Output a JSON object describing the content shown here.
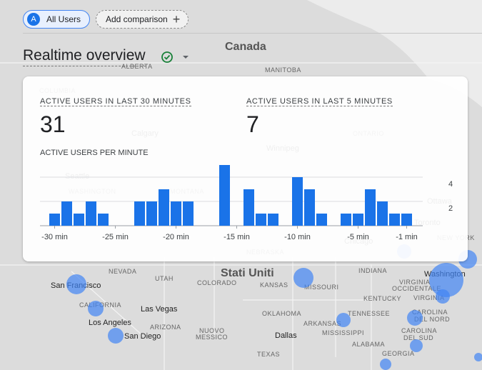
{
  "toolbar": {
    "segment_icon": "A",
    "segment": "All Users",
    "add_comparison": "Add comparison"
  },
  "header": {
    "title": "Realtime overview"
  },
  "card": {
    "metrics": [
      {
        "label": "ACTIVE USERS IN LAST 30 MINUTES",
        "value": 31
      },
      {
        "label": "ACTIVE USERS IN LAST 5 MINUTES",
        "value": 7
      }
    ]
  },
  "chart_data": {
    "type": "bar",
    "title": "ACTIVE USERS PER MINUTE",
    "color": "#1a73e8",
    "categories": [
      "-30 min",
      null,
      null,
      null,
      null,
      "-25 min",
      null,
      null,
      null,
      null,
      "-20 min",
      null,
      null,
      null,
      null,
      "-15 min",
      null,
      null,
      null,
      null,
      "-10 min",
      null,
      null,
      null,
      null,
      "-5 min",
      null,
      null,
      null,
      "-1 min"
    ],
    "values": [
      1,
      2,
      1,
      2,
      1,
      0,
      0,
      2,
      2,
      3,
      2,
      2,
      0,
      0,
      5,
      0,
      3,
      1,
      1,
      0,
      4,
      3,
      1,
      0,
      1,
      1,
      3,
      2,
      1,
      1
    ],
    "ylim": [
      0,
      5
    ],
    "yticks": [
      2,
      4
    ],
    "grid": true
  },
  "map": {
    "labels": [
      "Canada",
      "ALBERTA",
      "MANITOBA",
      "COLUMBIA",
      "Calgary",
      "ONTARIO",
      "Winnipeg",
      "Seattle",
      "WASHINGTON",
      "MONTANA",
      "Ottawa",
      "Toronto",
      "NEW YORK",
      "Chicago",
      "NEBRASKA",
      "Stati Uniti",
      "NEVADA",
      "UTAH",
      "COLORADO",
      "KANSAS",
      "MISSOURI",
      "INDIANA",
      "San Francisco",
      "CALIFORNIA",
      "Las Vegas",
      "KENTUCKY",
      "VIRGINIA",
      "OCCIDENTALE",
      "VIRGINIA",
      "Washington",
      "Los Angeles",
      "San Diego",
      "ARIZONA",
      "OKLAHOMA",
      "TENNESSEE",
      "CAROLINA",
      "DEL NORD",
      "ARKANSAS",
      "CAROLINA",
      "DEL SUD",
      "NUOVO",
      "MESSICO",
      "MISSISSIPPI",
      "Dallas",
      "ALABAMA",
      "TEXAS",
      "GEORGIA"
    ]
  }
}
